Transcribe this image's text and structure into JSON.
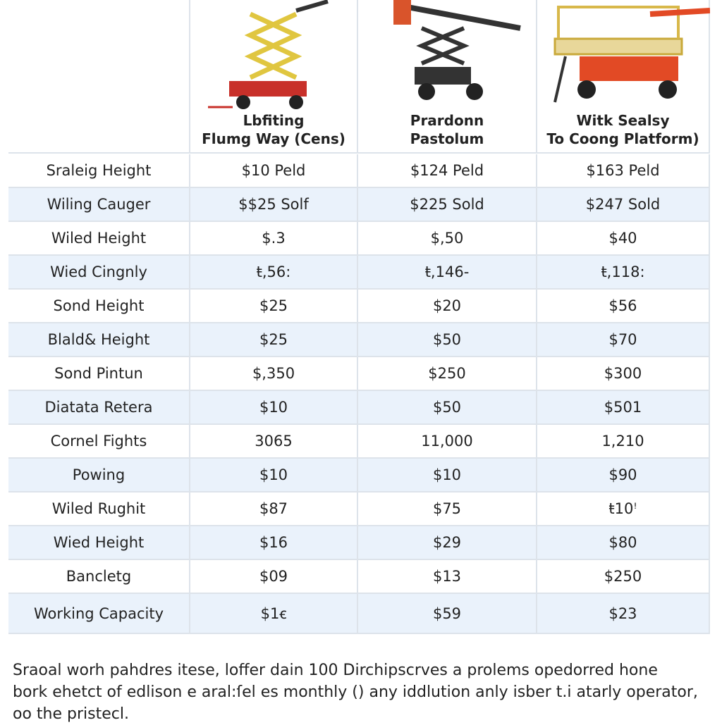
{
  "header": {
    "columns": [
      {
        "lines": [
          "Lbfiting",
          "Flumg Way (Cens)"
        ]
      },
      {
        "lines": [
          "Prardonn",
          "Pastolum"
        ]
      },
      {
        "lines": [
          "Witk Sealsy",
          "To Coong Platform)"
        ]
      }
    ]
  },
  "table": {
    "rows": [
      [
        "Sraleig Height",
        "$10 Peld",
        "$124 Peld",
        "$163 Peld"
      ],
      [
        "Wiling Cauger",
        "$$25 Solf",
        "$225 Sold",
        "$247 Sold"
      ],
      [
        "Wiled Height",
        "$.3",
        "$,50",
        "$40"
      ],
      [
        "Wied Cingnly",
        "ŧ,56:",
        "ŧ,146-",
        "ŧ,118:"
      ],
      [
        "Sond Height",
        "$25",
        "$20",
        "$56"
      ],
      [
        "Blald& Height",
        "$25",
        "$50",
        "$70"
      ],
      [
        "Sond Pintun",
        "$,350",
        "$250",
        "$300"
      ],
      [
        "Diatata Retera",
        "$10",
        "$50",
        "$501"
      ],
      [
        "Cornel Fights",
        "3065",
        "11,000",
        "1,210"
      ],
      [
        "Powing",
        "$10",
        "$10",
        "$90"
      ],
      [
        "Wiled Rughit",
        "$87",
        "$75",
        "ŧ10ꜝ"
      ],
      [
        "Wied Height",
        "$16",
        "$29",
        "$80"
      ],
      [
        "Bancletg",
        "$09",
        "$13",
        "$250"
      ],
      [
        "Working Capacity",
        "$1ꞓ",
        "$59",
        "$23"
      ]
    ]
  },
  "footnote": {
    "lines": [
      "Sraoal worh pahdres itese, loffer dain 100 Dirchipscrves a prolems opedorred hone",
      "bork ehetct of edlison e aral:ſel es monthly () any iddlution anly isber t.i atarly operator,",
      "oo the pristecl."
    ]
  }
}
